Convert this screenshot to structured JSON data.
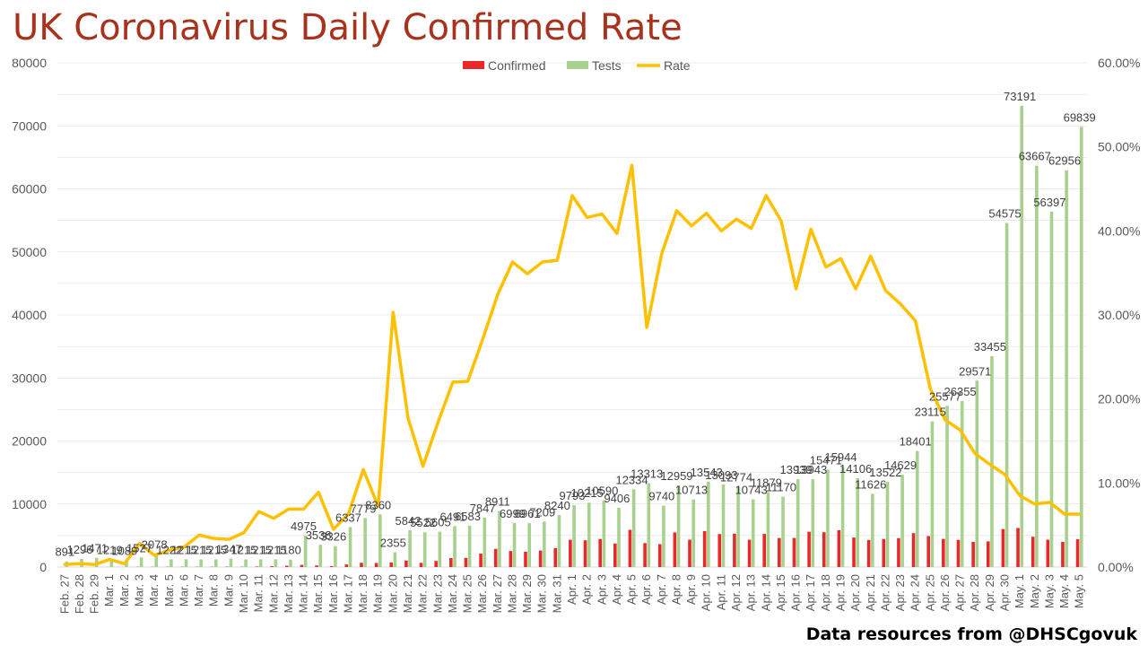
{
  "title": "UK Coronavirus Daily Confirmed Rate",
  "credit": "Data resources from @DHSCgovuk",
  "colors": {
    "confirmed": "#e8282b",
    "tests": "#a9d18e",
    "rate": "#ffc000",
    "title": "#a8321e",
    "grid": "#d9d9d9",
    "axis_text": "#595959"
  },
  "chart_data": {
    "type": "bar",
    "title": "UK Coronavirus Daily Confirmed Rate",
    "legend_position": "top",
    "grid": true,
    "ylim": [
      0,
      80000
    ],
    "y_ticks": [
      "0",
      "10000",
      "20000",
      "30000",
      "40000",
      "50000",
      "60000",
      "70000",
      "80000"
    ],
    "y2lim": [
      0,
      0.6
    ],
    "y2_ticks": [
      "0.00%",
      "10.00%",
      "20.00%",
      "30.00%",
      "40.00%",
      "50.00%",
      "60.00%"
    ],
    "categories": [
      "Feb. 27",
      "Feb. 28",
      "Feb. 29",
      "Mar. 1",
      "Mar. 2",
      "Mar. 3",
      "Mar. 4",
      "Mar. 5",
      "Mar. 6",
      "Mar. 7",
      "Mar. 8",
      "Mar. 9",
      "Mar. 10",
      "Mar. 11",
      "Mar. 12",
      "Mar. 13",
      "Mar. 14",
      "Mar. 15",
      "Mar. 16",
      "Mar. 17",
      "Mar. 18",
      "Mar. 19",
      "Mar. 20",
      "Mar. 21",
      "Mar. 22",
      "Mar. 23",
      "Mar. 24",
      "Mar. 25",
      "Mar. 26",
      "Mar. 27",
      "Mar. 28",
      "Mar. 29",
      "Mar. 30",
      "Mar. 31",
      "Apr. 1",
      "Apr. 2",
      "Apr. 3",
      "Apr. 4",
      "Apr. 5",
      "Apr. 6",
      "Apr. 7",
      "Apr. 8",
      "Apr. 9",
      "Apr. 10",
      "Apr. 11",
      "Apr. 12",
      "Apr. 13",
      "Apr. 14",
      "Apr. 15",
      "Apr. 16",
      "Apr. 17",
      "Apr. 18",
      "Apr. 19",
      "Apr. 20",
      "Apr. 21",
      "Apr. 22",
      "Apr. 23",
      "Apr. 24",
      "Apr. 25",
      "Apr. 26",
      "Apr. 27",
      "Apr. 28",
      "Apr. 29",
      "Apr. 30",
      "May. 1",
      "May. 2",
      "May. 3",
      "May. 4",
      "May. 5"
    ],
    "series": [
      {
        "name": "Confirmed",
        "type": "bar",
        "axis": "left",
        "values": [
          3,
          2,
          4,
          11,
          4,
          36,
          29,
          48,
          45,
          46,
          43,
          67,
          46,
          86,
          134,
          208,
          342,
          251,
          152,
          407,
          676,
          643,
          714,
          1035,
          665,
          967,
          1427,
          1452,
          2129,
          2885,
          2546,
          2433,
          2619,
          3009,
          4324,
          4244,
          4450,
          3735,
          5903,
          3802,
          3634,
          5491,
          4344,
          5706,
          5234,
          5288,
          4342,
          5252,
          4603,
          4617,
          5599,
          5526,
          5850,
          4676,
          4301,
          4451,
          4583,
          5386,
          4913,
          4463,
          4310,
          3996,
          4076,
          6032,
          6201,
          4806,
          4339,
          3985,
          4406
        ]
      },
      {
        "name": "Tests",
        "type": "bar",
        "axis": "left",
        "values": [
          891,
          1296,
          1471,
          1219,
          1089,
          1527,
          2078,
          1222,
          1215,
          1215,
          1215,
          1347,
          1215,
          1215,
          1215,
          1180,
          4975,
          3538,
          3326,
          6337,
          7779,
          8360,
          2355,
          5842,
          5522,
          5605,
          6491,
          6583,
          7847,
          8911,
          6999,
          6961,
          7209,
          8240,
          9793,
          10215,
          10590,
          9406,
          12334,
          13313,
          9740,
          12959,
          10713,
          13543,
          13093,
          12774,
          10743,
          11879,
          11170,
          13939,
          13943,
          15471,
          15944,
          14106,
          11626,
          13522,
          14629,
          18401,
          23115,
          25577,
          26355,
          29571,
          33455,
          54575,
          73191,
          63667,
          56397,
          62956,
          69839
        ],
        "data_labels": [
          "891",
          "1296",
          "1471",
          "1219",
          "1089",
          "1527",
          "2078",
          "1222",
          "1215",
          "1215",
          "1215",
          "1347",
          "1215",
          "1215",
          "1215",
          "1180",
          "4975",
          "3538",
          "3326",
          "6337",
          "7779",
          "8360",
          "2355",
          "5842",
          "5522",
          "5605",
          "6491",
          "6583",
          "7847",
          "8911",
          "6999",
          "6961",
          "7209",
          "8240",
          "9793",
          "10215",
          "10590",
          "9406",
          "12334",
          "13313",
          "9740",
          "12959",
          "10713",
          "13543",
          "13093",
          "12774",
          "10743",
          "11879",
          "11170",
          "13939",
          "13943",
          "15471",
          "15944",
          "14106",
          "11626",
          "13522",
          "14629",
          "18401",
          "23115",
          "25577",
          "26355",
          "29571",
          "33455",
          "54575",
          "73191",
          "63667",
          "56397",
          "62956",
          "69839"
        ]
      },
      {
        "name": "Rate",
        "type": "line",
        "axis": "right",
        "values": [
          0.003,
          0.004,
          0.003,
          0.009,
          0.004,
          0.028,
          0.014,
          0.02,
          0.024,
          0.038,
          0.034,
          0.033,
          0.041,
          0.066,
          0.058,
          0.069,
          0.069,
          0.089,
          0.045,
          0.063,
          0.116,
          0.072,
          0.303,
          0.177,
          0.12,
          0.172,
          0.22,
          0.221,
          0.271,
          0.324,
          0.363,
          0.349,
          0.363,
          0.365,
          0.442,
          0.416,
          0.42,
          0.397,
          0.478,
          0.285,
          0.373,
          0.424,
          0.406,
          0.421,
          0.4,
          0.414,
          0.403,
          0.442,
          0.412,
          0.331,
          0.402,
          0.357,
          0.367,
          0.331,
          0.37,
          0.329,
          0.313,
          0.293,
          0.212,
          0.175,
          0.163,
          0.135,
          0.122,
          0.11,
          0.085,
          0.075,
          0.077,
          0.063,
          0.063
        ]
      }
    ]
  }
}
